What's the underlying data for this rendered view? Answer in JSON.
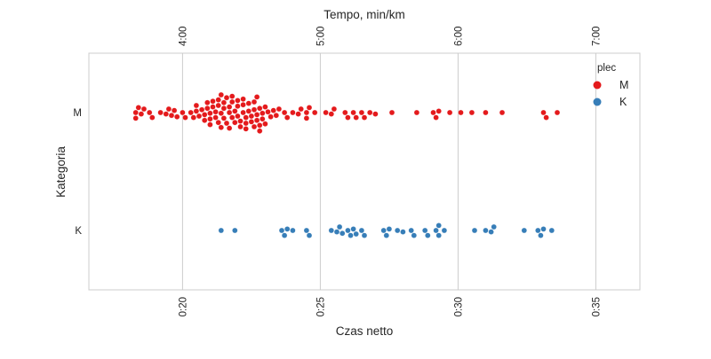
{
  "chart_data": {
    "type": "scatter",
    "subtype": "swarm",
    "xlabel": "Czas netto",
    "ylabel": "Kategoria",
    "x2label": "Tempo, min/km",
    "xlim": [
      16.6,
      36.6
    ],
    "x_ticks": [
      20,
      25,
      30,
      35
    ],
    "x_tick_labels": [
      "0:20",
      "0:25",
      "0:30",
      "0:35"
    ],
    "x2_ticks": [
      20,
      25,
      30,
      35
    ],
    "x2_tick_labels": [
      "4:00",
      "5:00",
      "6:00",
      "7:00"
    ],
    "categories": [
      "M",
      "K"
    ],
    "grid": true,
    "legend": {
      "title": "plec",
      "placement": "top-right"
    },
    "series": [
      {
        "name": "M",
        "color": "#e41a1c",
        "x": [
          18.3,
          18.3,
          18.4,
          18.5,
          18.6,
          18.8,
          18.9,
          19.2,
          19.4,
          19.5,
          19.6,
          19.7,
          19.8,
          20.0,
          20.1,
          20.3,
          20.4,
          20.5,
          20.5,
          20.6,
          20.7,
          20.8,
          20.8,
          20.9,
          20.9,
          21.0,
          21.0,
          21.0,
          21.1,
          21.1,
          21.2,
          21.2,
          21.3,
          21.3,
          21.3,
          21.4,
          21.4,
          21.4,
          21.5,
          21.5,
          21.5,
          21.6,
          21.6,
          21.7,
          21.7,
          21.7,
          21.8,
          21.8,
          21.8,
          21.9,
          21.9,
          22.0,
          22.0,
          22.0,
          22.1,
          22.1,
          22.2,
          22.2,
          22.2,
          22.3,
          22.3,
          22.3,
          22.4,
          22.4,
          22.5,
          22.5,
          22.6,
          22.6,
          22.6,
          22.7,
          22.7,
          22.7,
          22.8,
          22.8,
          22.8,
          22.9,
          22.9,
          23.0,
          23.0,
          23.1,
          23.2,
          23.3,
          23.4,
          23.5,
          23.7,
          23.8,
          24.0,
          24.2,
          24.3,
          24.5,
          24.5,
          24.6,
          24.8,
          25.2,
          25.4,
          25.5,
          25.9,
          26.0,
          26.2,
          26.3,
          26.5,
          26.6,
          26.8,
          27.0,
          27.6,
          28.5,
          29.1,
          29.2,
          29.3,
          29.7,
          30.1,
          30.5,
          31.0,
          31.6,
          33.1,
          33.2,
          33.6
        ]
      },
      {
        "name": "K",
        "color": "#377eb8",
        "x": [
          21.4,
          21.9,
          23.6,
          23.7,
          23.8,
          24.0,
          24.5,
          24.6,
          25.4,
          25.6,
          25.7,
          25.8,
          26.0,
          26.1,
          26.2,
          26.3,
          26.5,
          26.6,
          27.3,
          27.4,
          27.5,
          27.8,
          28.0,
          28.3,
          28.4,
          28.8,
          28.9,
          29.2,
          29.3,
          29.3,
          29.5,
          30.6,
          31.0,
          31.2,
          31.3,
          32.4,
          32.9,
          33.0,
          33.1,
          33.4
        ]
      }
    ]
  }
}
